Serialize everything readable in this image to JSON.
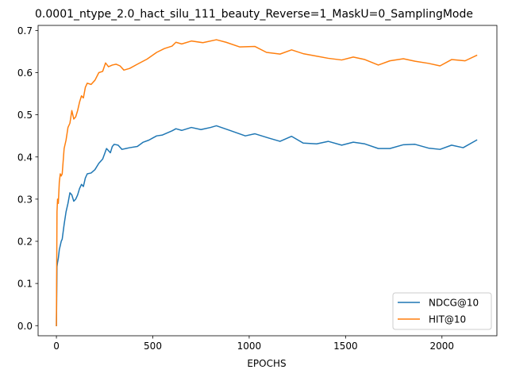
{
  "chart_data": {
    "type": "line",
    "title": "0.0001_ntype_2.0_hact_silu_111_beauty_Reverse=1_MaskU=0_SamplingMode",
    "xlabel": "EPOCHS",
    "ylabel": "",
    "xlim": [
      -95,
      2285
    ],
    "ylim": [
      -0.024,
      0.712
    ],
    "xticks": [
      0,
      500,
      1000,
      1500,
      2000
    ],
    "yticks": [
      0.0,
      0.1,
      0.2,
      0.3,
      0.4,
      0.5,
      0.6,
      0.7
    ],
    "xtick_labels": [
      "0",
      "500",
      "1000",
      "1500",
      "2000"
    ],
    "ytick_labels": [
      "0.0",
      "0.1",
      "0.2",
      "0.3",
      "0.4",
      "0.5",
      "0.6",
      "0.7"
    ],
    "grid": false,
    "legend_position": "lower right",
    "series": [
      {
        "name": "NDCG@10",
        "color": "#1f77b4",
        "x": [
          0,
          3,
          6,
          10,
          15,
          20,
          25,
          30,
          40,
          50,
          60,
          70,
          80,
          90,
          100,
          110,
          120,
          130,
          140,
          150,
          160,
          180,
          200,
          220,
          240,
          260,
          270,
          280,
          290,
          300,
          320,
          340,
          360,
          380,
          420,
          450,
          480,
          500,
          520,
          550,
          600,
          620,
          650,
          700,
          750,
          800,
          830,
          900,
          980,
          1030,
          1100,
          1160,
          1220,
          1280,
          1350,
          1410,
          1480,
          1540,
          1600,
          1670,
          1730,
          1800,
          1860,
          1930,
          1990,
          2050,
          2110,
          2180
        ],
        "y": [
          0.0,
          0.14,
          0.15,
          0.16,
          0.18,
          0.19,
          0.2,
          0.205,
          0.24,
          0.27,
          0.29,
          0.315,
          0.31,
          0.295,
          0.3,
          0.31,
          0.325,
          0.335,
          0.33,
          0.35,
          0.36,
          0.362,
          0.37,
          0.385,
          0.395,
          0.42,
          0.415,
          0.41,
          0.425,
          0.43,
          0.428,
          0.418,
          0.42,
          0.422,
          0.425,
          0.435,
          0.44,
          0.445,
          0.45,
          0.452,
          0.462,
          0.467,
          0.463,
          0.47,
          0.465,
          0.47,
          0.474,
          0.463,
          0.45,
          0.455,
          0.445,
          0.437,
          0.449,
          0.433,
          0.431,
          0.437,
          0.428,
          0.435,
          0.431,
          0.42,
          0.42,
          0.429,
          0.43,
          0.421,
          0.418,
          0.428,
          0.422,
          0.44
        ]
      },
      {
        "name": "HIT@10",
        "color": "#ff7f0e",
        "x": [
          0,
          3,
          6,
          10,
          15,
          20,
          25,
          30,
          40,
          50,
          60,
          70,
          80,
          90,
          100,
          110,
          120,
          130,
          140,
          150,
          160,
          180,
          200,
          220,
          240,
          255,
          270,
          290,
          310,
          330,
          350,
          380,
          420,
          470,
          520,
          560,
          600,
          620,
          650,
          700,
          760,
          830,
          880,
          950,
          1030,
          1090,
          1160,
          1220,
          1280,
          1350,
          1410,
          1480,
          1540,
          1600,
          1670,
          1730,
          1800,
          1860,
          1930,
          1990,
          2050,
          2120,
          2180
        ],
        "y": [
          0.0,
          0.27,
          0.3,
          0.29,
          0.34,
          0.36,
          0.355,
          0.36,
          0.42,
          0.44,
          0.47,
          0.48,
          0.51,
          0.49,
          0.495,
          0.51,
          0.53,
          0.545,
          0.54,
          0.565,
          0.575,
          0.572,
          0.582,
          0.6,
          0.603,
          0.623,
          0.614,
          0.618,
          0.62,
          0.616,
          0.606,
          0.61,
          0.62,
          0.632,
          0.648,
          0.657,
          0.663,
          0.672,
          0.668,
          0.675,
          0.671,
          0.678,
          0.672,
          0.661,
          0.662,
          0.648,
          0.644,
          0.654,
          0.645,
          0.639,
          0.634,
          0.63,
          0.637,
          0.631,
          0.618,
          0.628,
          0.633,
          0.627,
          0.622,
          0.616,
          0.631,
          0.628,
          0.641
        ]
      }
    ]
  }
}
